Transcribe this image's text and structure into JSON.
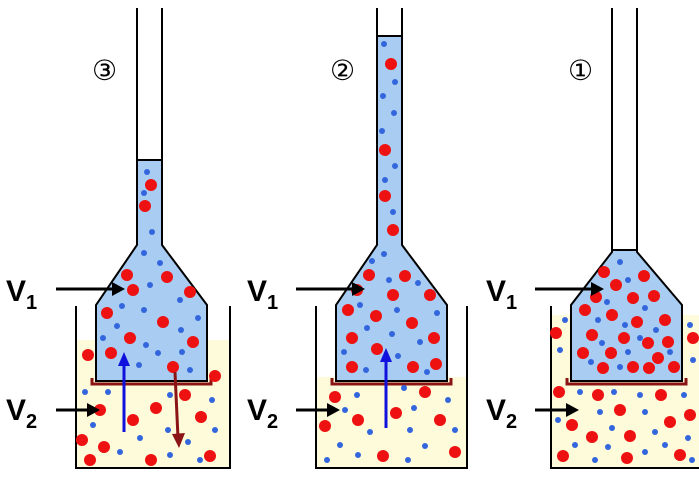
{
  "colors": {
    "solution_fill": "#a9cdf2",
    "beaker_fill": "#fdfbd9",
    "solute_particle": "#ee1111",
    "solvent_particle": "#3366dd",
    "arrow_in": "#1111dd",
    "arrow_out": "#8b1515",
    "membrane": "#8b1515",
    "outline": "#000000"
  },
  "panels": [
    {
      "number": "③",
      "volume_top": "V",
      "volume_top_sub": "1",
      "volume_bottom": "V",
      "volume_bottom_sub": "2"
    },
    {
      "number": "②",
      "volume_top": "V",
      "volume_top_sub": "1",
      "volume_bottom": "V",
      "volume_bottom_sub": "2"
    },
    {
      "number": "①",
      "volume_top": "V",
      "volume_top_sub": "1",
      "volume_bottom": "V",
      "volume_bottom_sub": "2"
    }
  ],
  "icons": {
    "pointer_arrow": "arrow-right-icon"
  }
}
